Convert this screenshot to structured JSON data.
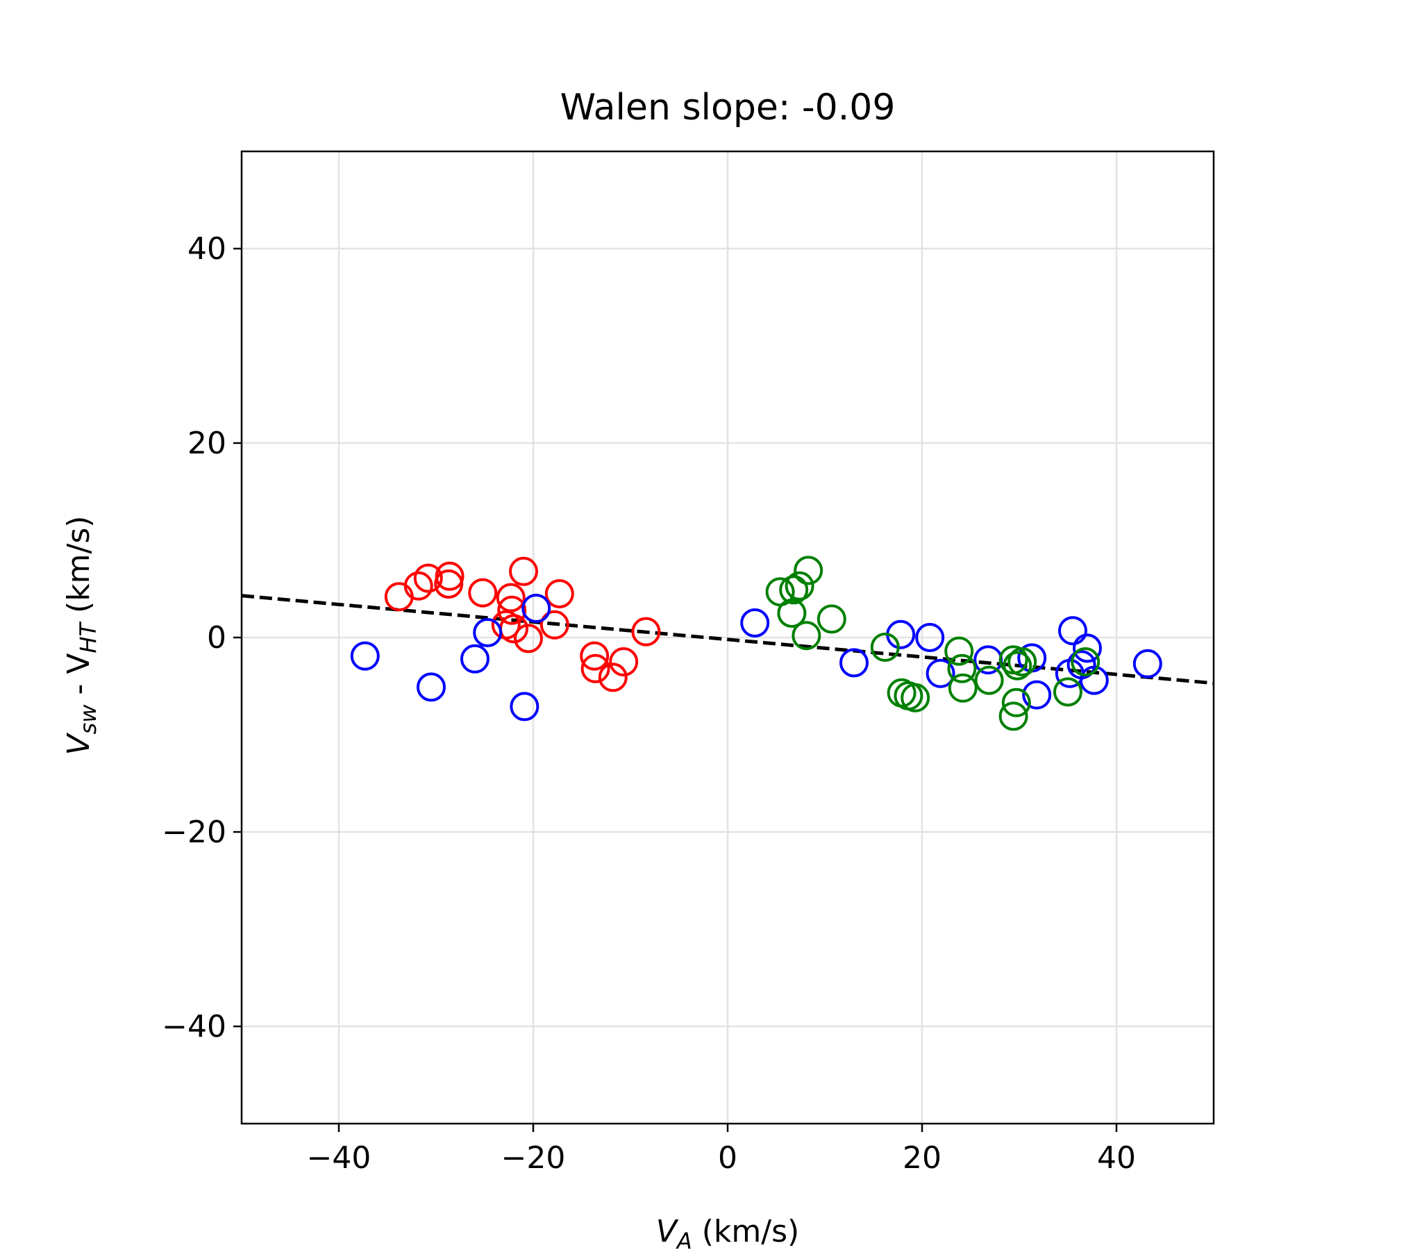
{
  "chart_data": {
    "type": "scatter",
    "title": "Walen slope: -0.09",
    "xlabel": {
      "main": "V",
      "sub": "A",
      "unit": " (km/s)"
    },
    "ylabel": {
      "part1": "V",
      "sub1": "sw",
      "mid": " - V",
      "sub2": "HT",
      "unit": " (km/s)"
    },
    "xlim": [
      -50,
      50
    ],
    "ylim": [
      -50,
      50
    ],
    "xticks": [
      -40,
      -20,
      0,
      20,
      40
    ],
    "yticks": [
      -40,
      -20,
      0,
      20,
      40
    ],
    "xtick_labels": [
      "−40",
      "−20",
      "0",
      "20",
      "40"
    ],
    "ytick_labels": [
      "−40",
      "−20",
      "0",
      "20",
      "40"
    ],
    "grid": true,
    "series": [
      {
        "color": "#ff0000",
        "points": [
          [
            -33.8,
            4.2
          ],
          [
            -31.8,
            5.3
          ],
          [
            -30.8,
            6.1
          ],
          [
            -28.6,
            6.3
          ],
          [
            -28.7,
            5.5
          ],
          [
            -25.2,
            4.6
          ],
          [
            -22.3,
            4.1
          ],
          [
            -22.2,
            2.8
          ],
          [
            -21.0,
            6.8
          ],
          [
            -17.3,
            4.5
          ],
          [
            -17.8,
            1.3
          ],
          [
            -22.8,
            1.3
          ],
          [
            -22.0,
            0.9
          ],
          [
            -20.5,
            -0.1
          ],
          [
            -13.7,
            -1.9
          ],
          [
            -13.6,
            -3.2
          ],
          [
            -10.7,
            -2.5
          ],
          [
            -11.8,
            -4.1
          ],
          [
            -8.4,
            0.6
          ]
        ]
      },
      {
        "color": "#0000ff",
        "points": [
          [
            -37.3,
            -1.9
          ],
          [
            -30.5,
            -5.1
          ],
          [
            -26.0,
            -2.2
          ],
          [
            -24.7,
            0.5
          ],
          [
            -19.7,
            3.0
          ],
          [
            -20.9,
            -7.1
          ],
          [
            2.8,
            1.5
          ],
          [
            13.0,
            -2.6
          ],
          [
            17.8,
            0.3
          ],
          [
            20.8,
            0.0
          ],
          [
            21.9,
            -3.7
          ],
          [
            26.8,
            -2.3
          ],
          [
            31.3,
            -2.1
          ],
          [
            31.8,
            -5.9
          ],
          [
            35.5,
            0.7
          ],
          [
            35.2,
            -3.7
          ],
          [
            36.4,
            -2.8
          ],
          [
            37.0,
            -1.1
          ],
          [
            37.7,
            -4.4
          ],
          [
            43.2,
            -2.7
          ]
        ]
      },
      {
        "color": "#008000",
        "points": [
          [
            5.4,
            4.7
          ],
          [
            6.8,
            4.9
          ],
          [
            7.4,
            5.3
          ],
          [
            8.3,
            6.9
          ],
          [
            6.6,
            2.5
          ],
          [
            8.1,
            0.2
          ],
          [
            10.7,
            1.9
          ],
          [
            16.2,
            -1.0
          ],
          [
            17.9,
            -5.7
          ],
          [
            18.6,
            -6.0
          ],
          [
            19.3,
            -6.2
          ],
          [
            23.8,
            -1.4
          ],
          [
            24.1,
            -3.2
          ],
          [
            24.2,
            -5.2
          ],
          [
            26.9,
            -4.4
          ],
          [
            29.4,
            -2.3
          ],
          [
            29.8,
            -2.9
          ],
          [
            30.3,
            -2.5
          ],
          [
            29.7,
            -6.7
          ],
          [
            29.4,
            -8.1
          ],
          [
            35.0,
            -5.6
          ],
          [
            36.8,
            -2.5
          ]
        ]
      }
    ],
    "fit_line": {
      "slope": -0.09,
      "intercept": -0.2,
      "color": "#000000",
      "style": "dashed"
    }
  }
}
